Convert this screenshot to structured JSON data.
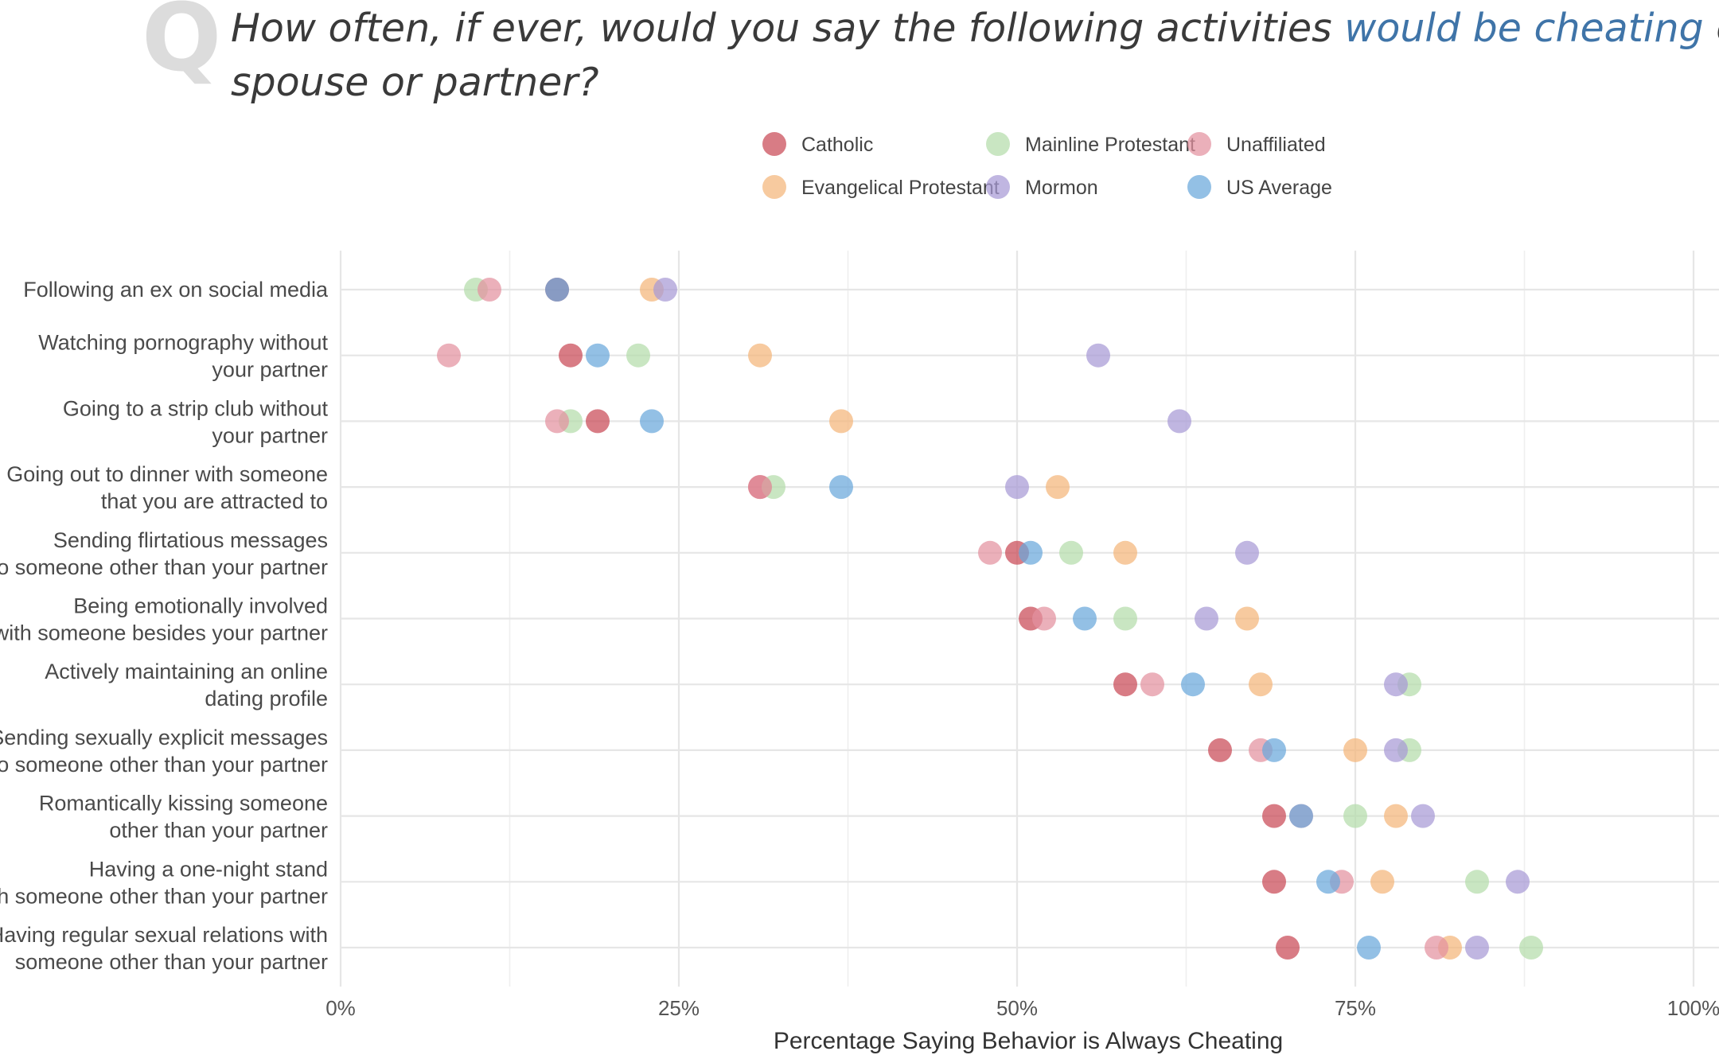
{
  "header": {
    "q_letter": "Q",
    "title_line1_before": "How often, if ever, would you say the following activities ",
    "title_line1_highlight": "would be cheating",
    "title_line1_after": " on a",
    "title_line2": "spouse or partner?"
  },
  "colors": {
    "Catholic": "#c94a56",
    "Evangelical Protestant": "#f4b57a",
    "Mainline Protestant": "#b4dcaa",
    "Mormon": "#a79ad6",
    "Unaffiliated": "#e391a0",
    "US Average": "#6aa8db",
    "highlight": "#3f74a8",
    "q_letter": "#dcdcdc"
  },
  "chart_data": {
    "type": "scatter",
    "subtype": "dot-plot",
    "xlabel": "Percentage Saying Behavior is Always Cheating",
    "ylabel": "",
    "xlim": [
      0,
      100
    ],
    "x_ticks": [
      0,
      25,
      50,
      75,
      100
    ],
    "x_tick_labels": [
      "0%",
      "25%",
      "50%",
      "75%",
      "100%"
    ],
    "grid": true,
    "legend_position": "top",
    "categories": [
      "Following an ex on social media",
      "Watching pornography without your partner",
      "Going to a strip club without your partner",
      "Going out to dinner with someone that you are attracted to",
      "Sending flirtatious messages to someone other than your partner",
      "Being emotionally involved with someone besides your partner",
      "Actively maintaining an online dating profile",
      "Sending sexually explicit messages to someone other than your partner",
      "Romantically kissing someone other than your partner",
      "Having a one-night stand with someone other than your partner",
      "Having regular sexual relations with someone other than your partner"
    ],
    "category_lines": [
      [
        "Following an ex on social media"
      ],
      [
        "Watching pornography without",
        "your partner"
      ],
      [
        "Going to a strip club without",
        "your partner"
      ],
      [
        "Going out to dinner with someone",
        "that you are attracted to"
      ],
      [
        "Sending flirtatious messages",
        "to someone other than your partner"
      ],
      [
        "Being emotionally involved",
        "with someone besides your partner"
      ],
      [
        "Actively maintaining an online",
        "dating profile"
      ],
      [
        "Sending sexually explicit messages",
        "to someone other than your partner"
      ],
      [
        "Romantically kissing someone",
        "other than your partner"
      ],
      [
        "Having a one-night stand",
        "with someone other than your partner"
      ],
      [
        "Having regular sexual relations with",
        "someone other than your partner"
      ]
    ],
    "series": [
      {
        "name": "Catholic",
        "values": [
          16,
          17,
          19,
          31,
          50,
          51,
          58,
          65,
          69,
          69,
          70
        ]
      },
      {
        "name": "Evangelical Protestant",
        "values": [
          23,
          31,
          37,
          53,
          58,
          67,
          68,
          75,
          78,
          77,
          82
        ]
      },
      {
        "name": "Mainline Protestant",
        "values": [
          10,
          22,
          17,
          32,
          54,
          58,
          79,
          79,
          75,
          84,
          88
        ]
      },
      {
        "name": "Mormon",
        "values": [
          24,
          56,
          62,
          50,
          67,
          64,
          78,
          78,
          80,
          87,
          84
        ]
      },
      {
        "name": "Unaffiliated",
        "values": [
          11,
          8,
          16,
          31,
          48,
          52,
          60,
          68,
          71,
          74,
          81
        ]
      },
      {
        "name": "US Average",
        "values": [
          16,
          19,
          23,
          37,
          51,
          55,
          63,
          69,
          71,
          73,
          76
        ]
      }
    ],
    "legend_order": [
      "Catholic",
      "Mainline Protestant",
      "Unaffiliated",
      "Evangelical Protestant",
      "Mormon",
      "US Average"
    ]
  }
}
